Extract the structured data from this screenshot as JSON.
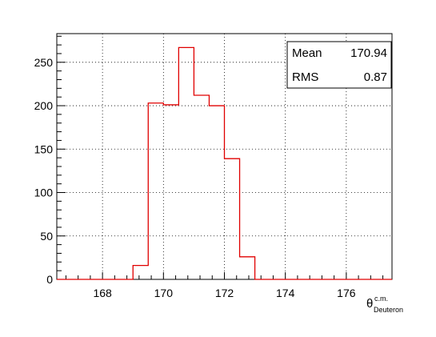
{
  "chart_data": {
    "type": "bar",
    "title": "",
    "xlabel": "θ",
    "xlabel_superscript": "c.m.",
    "xlabel_subscript": "Deuteron",
    "ylabel": "",
    "xlim": [
      166.5,
      177.5
    ],
    "ylim": [
      0,
      283
    ],
    "x_ticks": [
      168,
      170,
      172,
      174,
      176
    ],
    "x_tick_labels": [
      "168",
      "170",
      "172",
      "174",
      "176"
    ],
    "y_ticks": [
      0,
      50,
      100,
      150,
      200,
      250
    ],
    "y_tick_labels": [
      "0",
      "50",
      "100",
      "150",
      "200",
      "250"
    ],
    "grid": true,
    "line_color": "#e00000",
    "bin_width": 0.5,
    "bins": [
      {
        "x_low": 169.0,
        "value": 16
      },
      {
        "x_low": 169.5,
        "value": 203
      },
      {
        "x_low": 170.0,
        "value": 201
      },
      {
        "x_low": 170.5,
        "value": 267
      },
      {
        "x_low": 171.0,
        "value": 212
      },
      {
        "x_low": 171.5,
        "value": 200
      },
      {
        "x_low": 172.0,
        "value": 139
      },
      {
        "x_low": 172.5,
        "value": 26
      }
    ],
    "stats": {
      "mean_label": "Mean",
      "mean_value": "170.94",
      "rms_label": "RMS",
      "rms_value": "0.87",
      "placement": "top-right"
    }
  }
}
